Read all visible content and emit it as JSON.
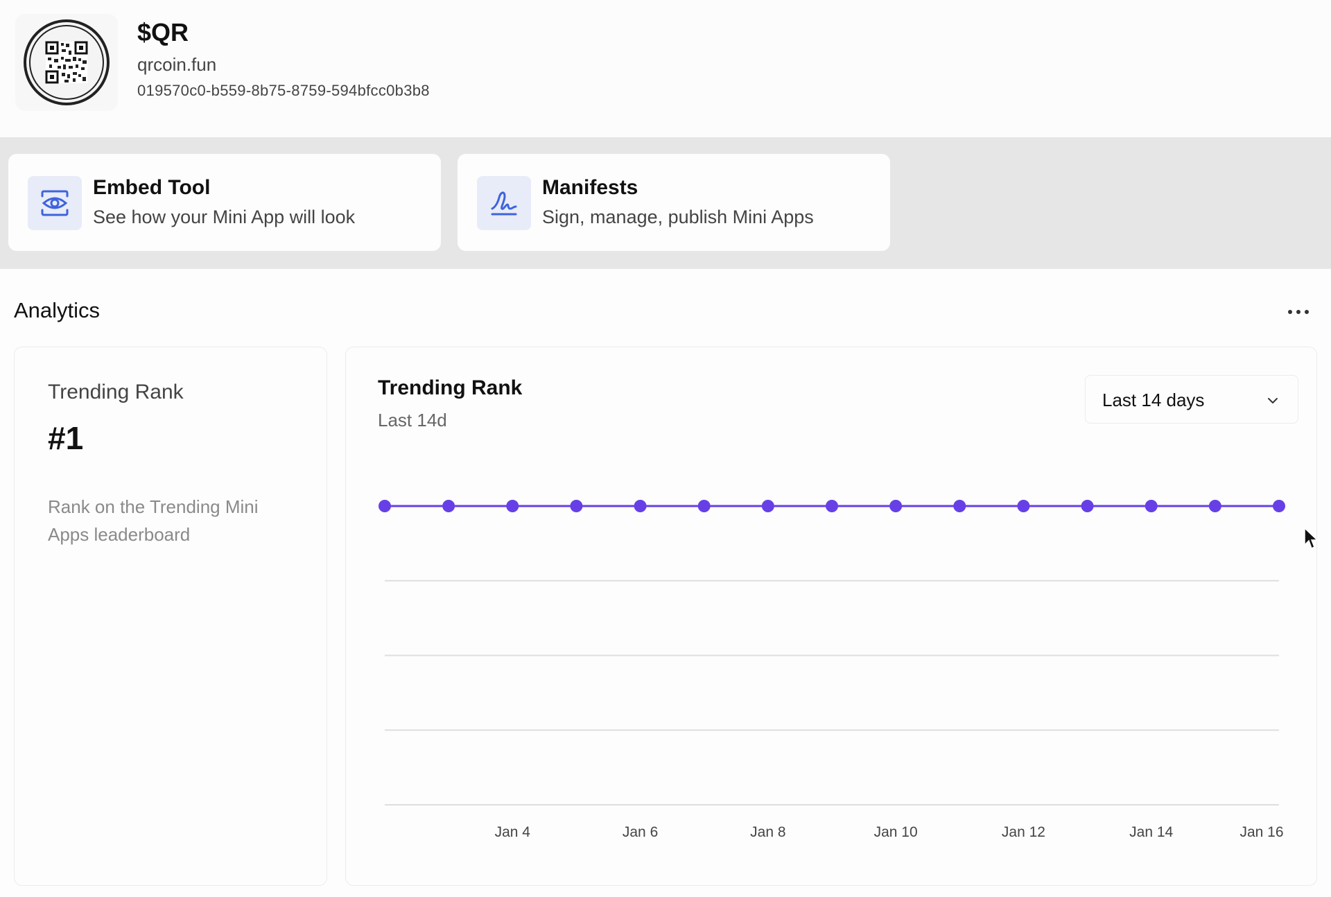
{
  "app": {
    "name": "$QR",
    "domain": "qrcoin.fun",
    "id": "019570c0-b559-8b75-8759-594bfcc0b3b8",
    "logo_icon": "qr-code-coin-icon"
  },
  "tools": [
    {
      "title": "Embed Tool",
      "subtitle": "See how your Mini App will look",
      "icon": "eye-icon"
    },
    {
      "title": "Manifests",
      "subtitle": "Sign, manage, publish Mini Apps",
      "icon": "signature-icon"
    }
  ],
  "analytics": {
    "title": "Analytics",
    "more_icon": "more-horizontal-icon",
    "stat": {
      "label": "Trending Rank",
      "value": "#1",
      "description": "Rank on the Trending Mini Apps leaderboard"
    },
    "chart": {
      "title": "Trending Rank",
      "subtitle": "Last 14d",
      "range_label": "Last 14 days",
      "range_icon": "chevron-down-icon"
    }
  },
  "colors": {
    "accent": "#6640e6",
    "icon_blue": "#3d63dd",
    "icon_bg": "#e8ebf8"
  },
  "chart_data": {
    "type": "line",
    "x": [
      "Jan 2",
      "Jan 3",
      "Jan 4",
      "Jan 5",
      "Jan 6",
      "Jan 7",
      "Jan 8",
      "Jan 9",
      "Jan 10",
      "Jan 11",
      "Jan 12",
      "Jan 13",
      "Jan 14",
      "Jan 15",
      "Jan 16"
    ],
    "series": [
      {
        "values": [
          1,
          1,
          1,
          1,
          1,
          1,
          1,
          1,
          1,
          1,
          1,
          1,
          1,
          1,
          1
        ]
      }
    ],
    "x_tick_labels": [
      "Jan 4",
      "Jan 6",
      "Jan 8",
      "Jan 10",
      "Jan 12",
      "Jan 14",
      "Jan 16"
    ],
    "y_axis": "reversed",
    "grid": "horizontal"
  }
}
